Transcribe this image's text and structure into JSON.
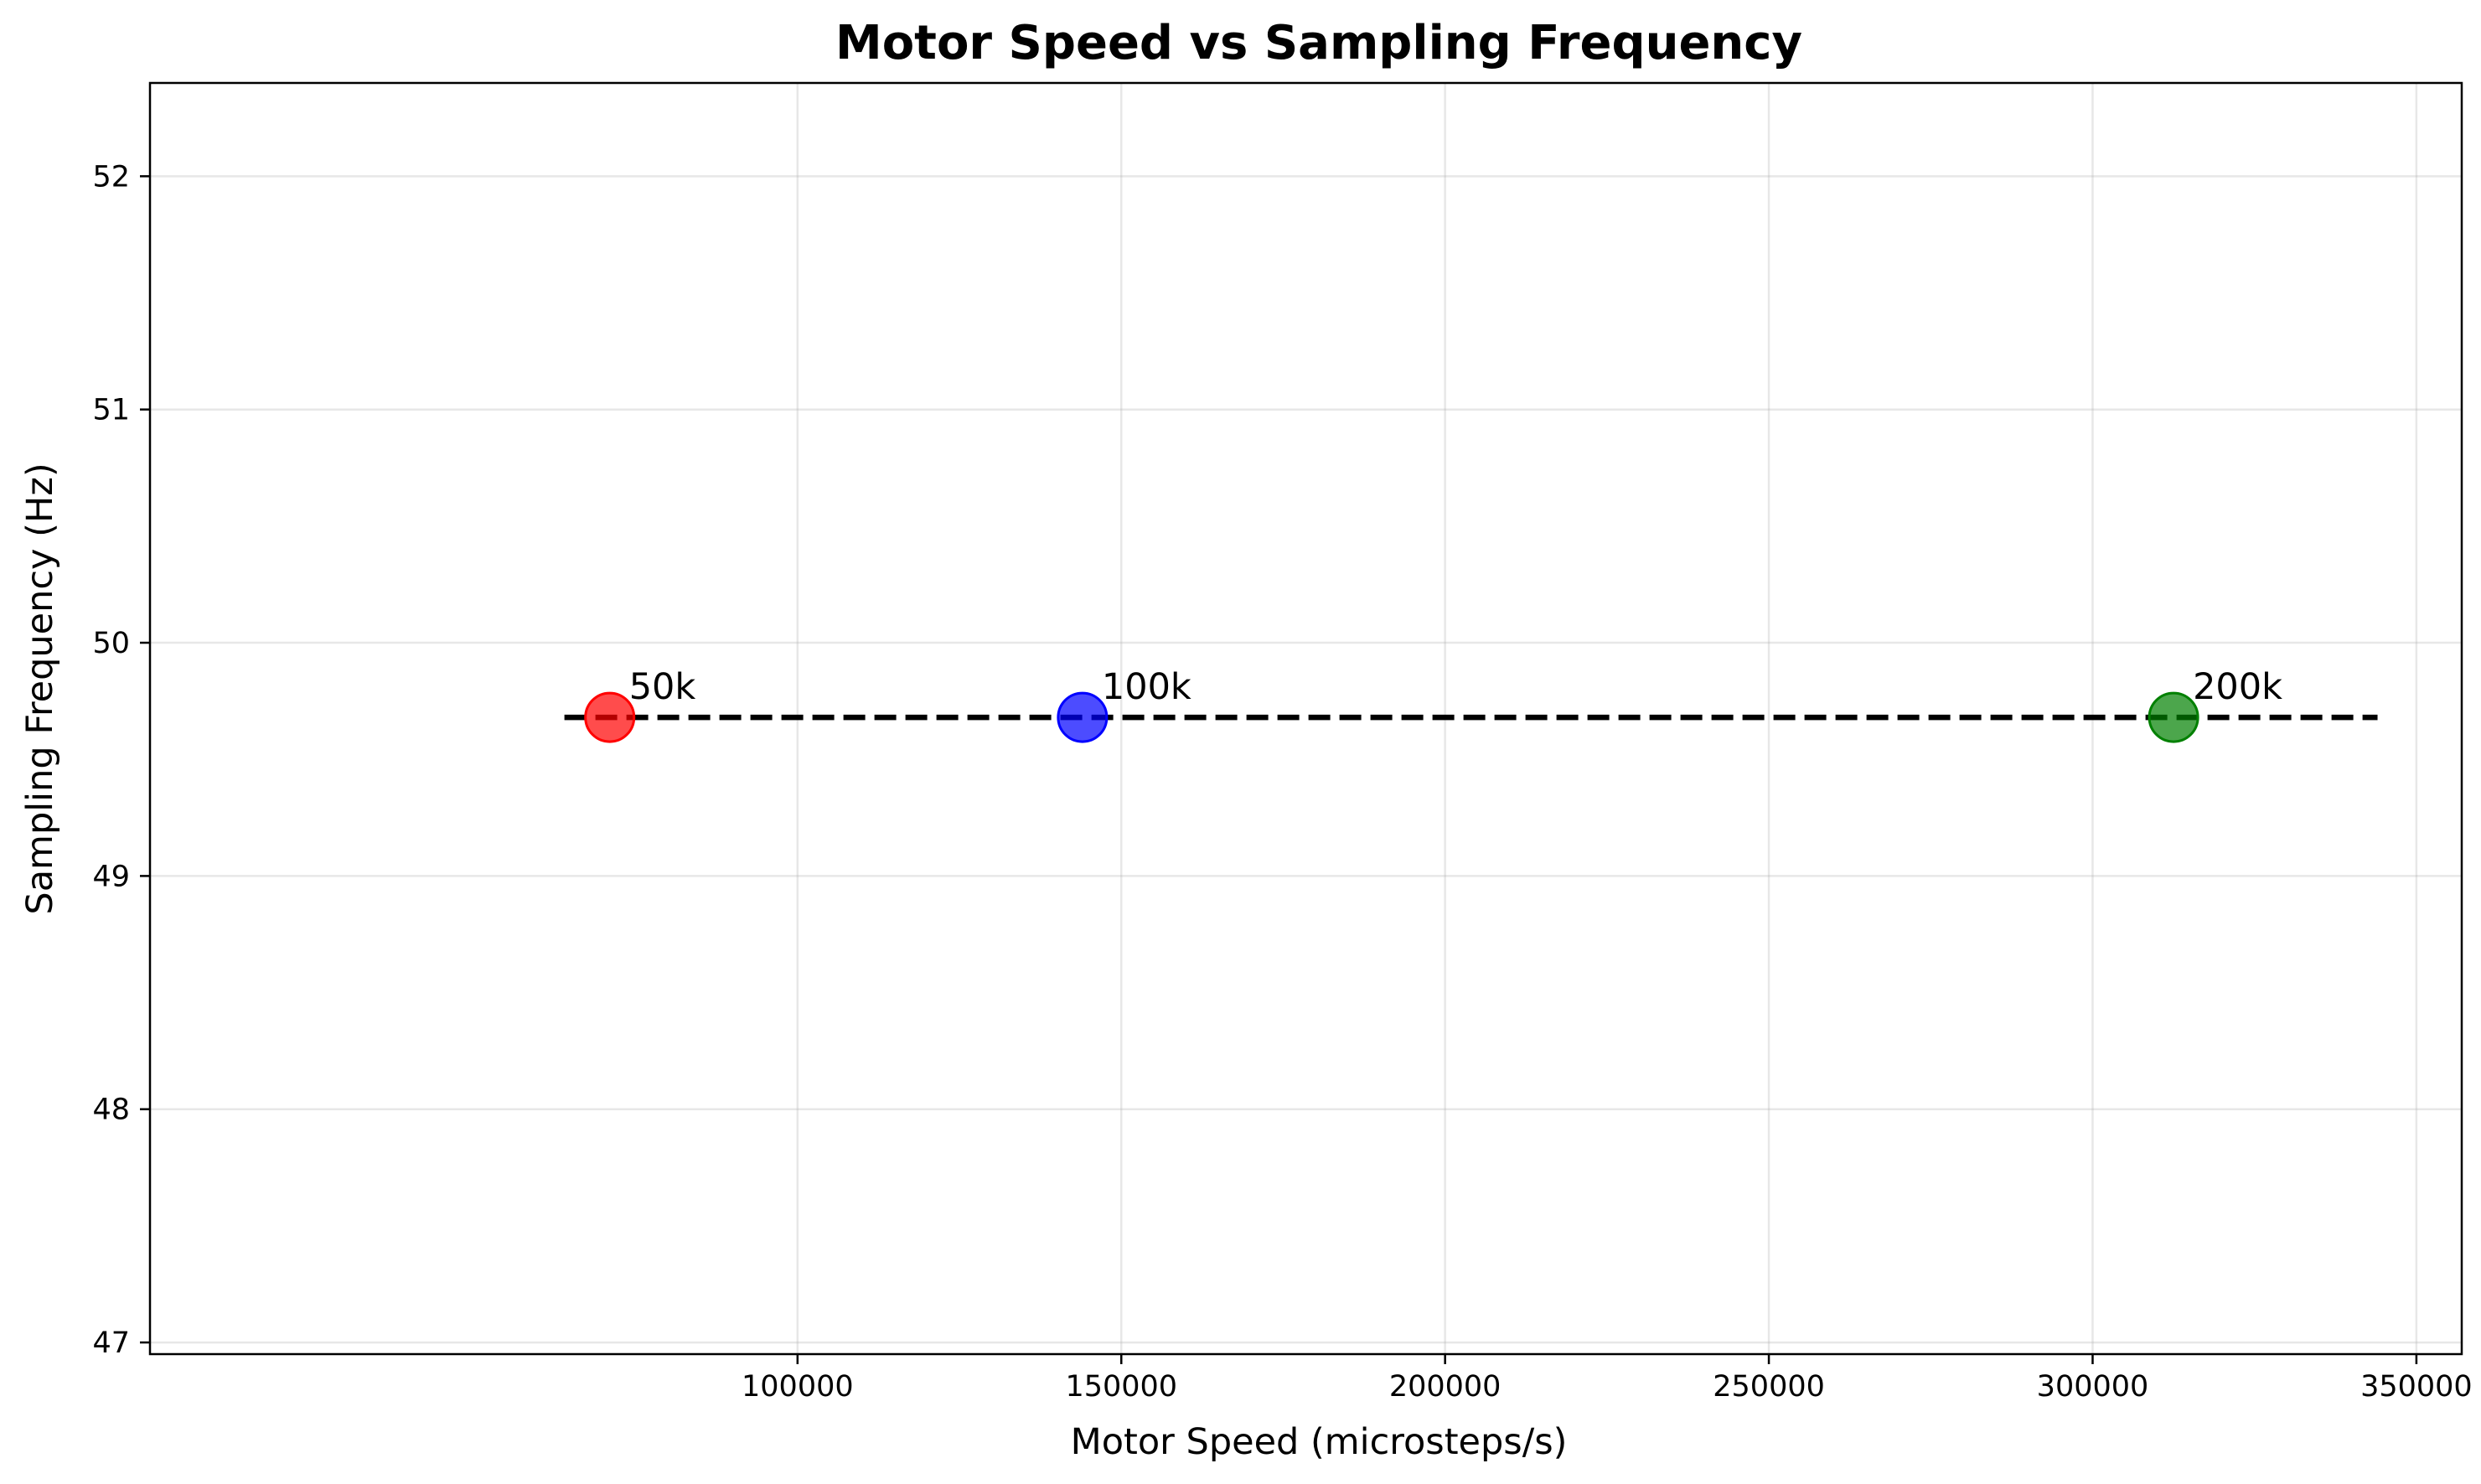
{
  "chart_data": {
    "type": "scatter",
    "title": "Motor Speed vs Sampling Frequency",
    "xlabel": "Motor Speed (microsteps/s)",
    "ylabel": "Sampling Frequency (Hz)",
    "xlim": [
      0,
      357000
    ],
    "ylim": [
      46.95,
      52.4
    ],
    "xticks": [
      100000,
      150000,
      200000,
      250000,
      300000,
      350000
    ],
    "yticks": [
      47,
      48,
      49,
      50,
      51,
      52
    ],
    "grid": true,
    "points": [
      {
        "label": "50k",
        "x": 71000,
        "y": 49.68,
        "color": "#ff0000"
      },
      {
        "label": "100k",
        "x": 144000,
        "y": 49.68,
        "color": "#0000ff"
      },
      {
        "label": "200k",
        "x": 312500,
        "y": 49.68,
        "color": "#008000"
      }
    ],
    "reference_line": {
      "style": "dashed",
      "color": "#000000",
      "x": [
        64000,
        344000
      ],
      "y": 49.68
    }
  }
}
